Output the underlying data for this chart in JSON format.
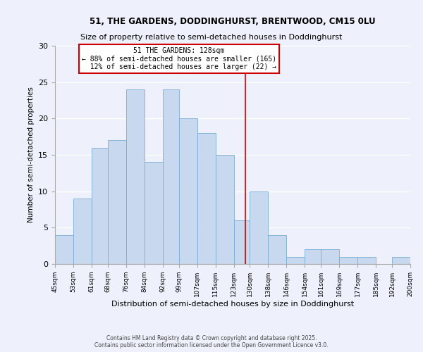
{
  "title1": "51, THE GARDENS, DODDINGHURST, BRENTWOOD, CM15 0LU",
  "title2": "Size of property relative to semi-detached houses in Doddinghurst",
  "xlabel": "Distribution of semi-detached houses by size in Doddinghurst",
  "ylabel": "Number of semi-detached properties",
  "bin_edges": [
    45,
    53,
    61,
    68,
    76,
    84,
    92,
    99,
    107,
    115,
    123,
    130,
    138,
    146,
    154,
    161,
    169,
    177,
    185,
    192,
    200
  ],
  "counts": [
    4,
    9,
    16,
    17,
    24,
    14,
    24,
    20,
    18,
    15,
    6,
    10,
    4,
    1,
    2,
    2,
    1,
    1,
    0,
    1
  ],
  "bar_color": "#c8d8ee",
  "bar_edge_color": "#7aafd4",
  "vline_x": 128,
  "vline_color": "#cc0000",
  "ylim": [
    0,
    30
  ],
  "yticks": [
    0,
    5,
    10,
    15,
    20,
    25,
    30
  ],
  "tick_labels": [
    "45sqm",
    "53sqm",
    "61sqm",
    "68sqm",
    "76sqm",
    "84sqm",
    "92sqm",
    "99sqm",
    "107sqm",
    "115sqm",
    "123sqm",
    "130sqm",
    "138sqm",
    "146sqm",
    "154sqm",
    "161sqm",
    "169sqm",
    "177sqm",
    "185sqm",
    "192sqm",
    "200sqm"
  ],
  "bg_color": "#eef1fb",
  "grid_color": "#ffffff",
  "annotation_box_color": "#ffffff",
  "annotation_box_edge": "#cc0000",
  "footnote1": "Contains HM Land Registry data © Crown copyright and database right 2025.",
  "footnote2": "Contains public sector information licensed under the Open Government Licence v3.0.",
  "smaller_pct": "88%",
  "smaller_count": 165,
  "larger_pct": "12%",
  "larger_count": 22
}
